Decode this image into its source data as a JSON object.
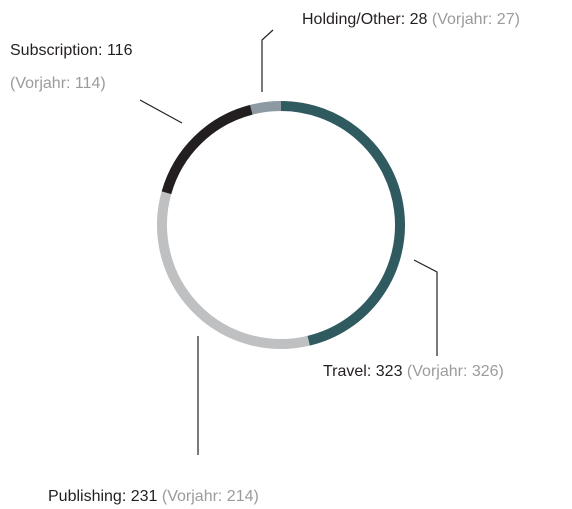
{
  "chart_data": {
    "type": "donut",
    "series": [
      {
        "name": "Holding/Other:",
        "color": "#8e9aa3",
        "values": [
          28
        ],
        "prior": "(Vorjahr: 27)"
      },
      {
        "name": "Travel:",
        "color": "#2f5a60",
        "values": [
          323
        ],
        "prior": "(Vorjahr: 326)"
      },
      {
        "name": "Publishing:",
        "color": "#bfc0c2",
        "values": [
          231
        ],
        "prior": "(Vorjahr: 214)"
      },
      {
        "name": "Subscription:",
        "color": "#231f20",
        "values": [
          116
        ],
        "prior": "(Vorjahr: 114)"
      }
    ]
  }
}
